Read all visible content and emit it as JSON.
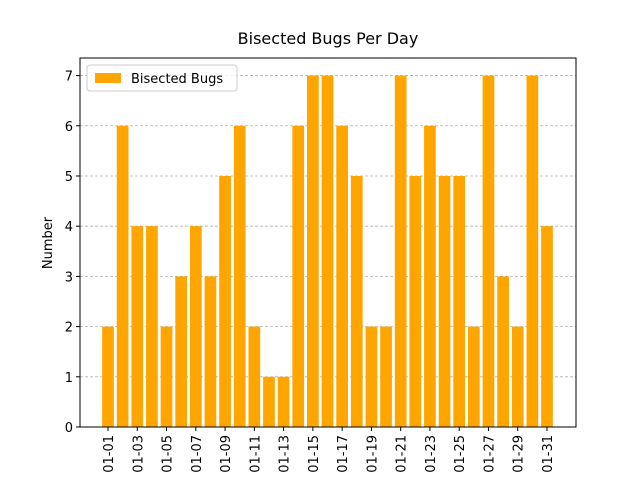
{
  "chart_data": {
    "type": "bar",
    "title": "Bisected Bugs Per Day",
    "ylabel": "Number",
    "categories": [
      "01-01",
      null,
      "01-03",
      null,
      "01-05",
      null,
      "01-07",
      null,
      "01-09",
      null,
      "01-11",
      null,
      "01-13",
      null,
      "01-15",
      null,
      "01-17",
      null,
      "01-19",
      null,
      "01-21",
      null,
      "01-23",
      null,
      "01-25",
      null,
      "01-27",
      null,
      "01-29",
      null,
      "01-31"
    ],
    "series": [
      {
        "name": "Bisected Bugs",
        "color": "#ffa500",
        "values": [
          2,
          6,
          4,
          4,
          2,
          3,
          4,
          3,
          5,
          6,
          2,
          1,
          1,
          6,
          7,
          7,
          6,
          5,
          2,
          2,
          7,
          5,
          6,
          5,
          5,
          2,
          7,
          3,
          2,
          7,
          4
        ]
      }
    ],
    "ylim": [
      0,
      7.35
    ],
    "yticks": [
      0,
      1,
      2,
      3,
      4,
      5,
      6,
      7
    ],
    "grid": true,
    "legend": "upper left"
  }
}
